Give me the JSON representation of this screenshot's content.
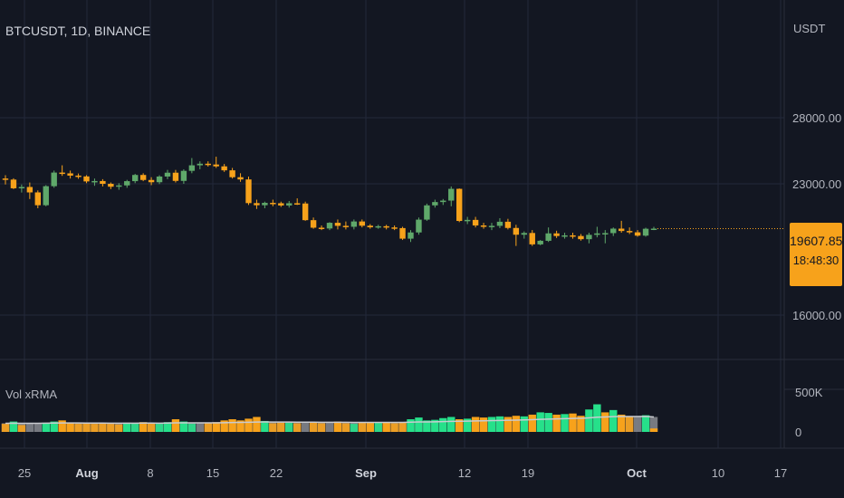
{
  "header": {
    "symbol": "BTCUSDT, 1D, BINANCE",
    "currency": "USDT"
  },
  "indicator": {
    "label": "Vol xRMA"
  },
  "last_price": {
    "value": "19607.85",
    "countdown": "18:48:30"
  },
  "colors": {
    "up": "#5fa86a",
    "down": "#f7a21b",
    "vol_up": "#26e08a",
    "vol_down": "#f7a21b",
    "vol_avg": "#8a8c92",
    "rma_line": "#c9cbd0",
    "bg": "#131722",
    "grid": "#23283a"
  },
  "chart_data": [
    {
      "type": "candlestick",
      "title": "BTCUSDT, 1D, BINANCE",
      "y_unit": "USDT",
      "y_ticks": [
        "28000.00",
        "23000.00",
        "16000.00"
      ],
      "x_ticks": [
        {
          "label": "25",
          "bold": false
        },
        {
          "label": "Aug",
          "bold": true
        },
        {
          "label": "8",
          "bold": false
        },
        {
          "label": "15",
          "bold": false
        },
        {
          "label": "22",
          "bold": false
        },
        {
          "label": "Sep",
          "bold": true
        },
        {
          "label": "12",
          "bold": false
        },
        {
          "label": "19",
          "bold": false
        },
        {
          "label": "Oct",
          "bold": true
        },
        {
          "label": "10",
          "bold": false
        },
        {
          "label": "17",
          "bold": false
        }
      ],
      "candles": [
        [
          23400,
          23650,
          22950,
          23320
        ],
        [
          23320,
          23420,
          22600,
          22660
        ],
        [
          22660,
          22950,
          22340,
          22760
        ],
        [
          22760,
          23100,
          21850,
          22350
        ],
        [
          22350,
          22500,
          21150,
          21380
        ],
        [
          21380,
          22900,
          21300,
          22820
        ],
        [
          22820,
          24000,
          22700,
          23850
        ],
        [
          23850,
          24400,
          23600,
          23790
        ],
        [
          23790,
          24000,
          23400,
          23620
        ],
        [
          23620,
          23780,
          23380,
          23560
        ],
        [
          23560,
          23650,
          23050,
          23180
        ],
        [
          23180,
          23400,
          22850,
          23210
        ],
        [
          23210,
          23350,
          22800,
          23000
        ],
        [
          23000,
          23100,
          22600,
          22780
        ],
        [
          22780,
          23050,
          22550,
          22880
        ],
        [
          22880,
          23300,
          22700,
          23200
        ],
        [
          23200,
          23750,
          23050,
          23670
        ],
        [
          23670,
          23800,
          23200,
          23290
        ],
        [
          23290,
          23500,
          22900,
          23120
        ],
        [
          23120,
          23650,
          22980,
          23550
        ],
        [
          23550,
          24050,
          23350,
          23840
        ],
        [
          23840,
          24050,
          23100,
          23220
        ],
        [
          23220,
          24100,
          23000,
          23980
        ],
        [
          23980,
          24950,
          23800,
          24400
        ],
        [
          24400,
          24700,
          24100,
          24520
        ],
        [
          24520,
          24700,
          24300,
          24460
        ],
        [
          24460,
          25050,
          24200,
          24320
        ],
        [
          24320,
          24500,
          23900,
          24020
        ],
        [
          24020,
          24200,
          23400,
          23500
        ],
        [
          23500,
          23800,
          23150,
          23330
        ],
        [
          23330,
          23550,
          21400,
          21540
        ],
        [
          21540,
          21800,
          21100,
          21380
        ],
        [
          21380,
          21650,
          21150,
          21560
        ],
        [
          21560,
          21800,
          21300,
          21530
        ],
        [
          21530,
          21650,
          21250,
          21360
        ],
        [
          21360,
          21700,
          21200,
          21530
        ],
        [
          21530,
          21900,
          21400,
          21510
        ],
        [
          21510,
          21650,
          20200,
          20250
        ],
        [
          20250,
          20450,
          19600,
          19680
        ],
        [
          19680,
          19850,
          19500,
          19620
        ],
        [
          19620,
          20100,
          19500,
          20050
        ],
        [
          20050,
          20300,
          19550,
          19820
        ],
        [
          19820,
          20150,
          19550,
          19750
        ],
        [
          19750,
          20300,
          19550,
          20150
        ],
        [
          20150,
          20300,
          19700,
          19830
        ],
        [
          19830,
          19950,
          19600,
          19710
        ],
        [
          19710,
          19900,
          19600,
          19790
        ],
        [
          19790,
          19900,
          19550,
          19700
        ],
        [
          19700,
          19850,
          19500,
          19650
        ],
        [
          19650,
          19750,
          18750,
          18850
        ],
        [
          18850,
          19500,
          18600,
          19320
        ],
        [
          19320,
          20450,
          19150,
          20290
        ],
        [
          20290,
          21500,
          20200,
          21370
        ],
        [
          21370,
          21800,
          21200,
          21620
        ],
        [
          21620,
          21850,
          21400,
          21730
        ],
        [
          21730,
          22800,
          21300,
          22620
        ],
        [
          22620,
          22650,
          20100,
          20190
        ],
        [
          20190,
          20500,
          19950,
          20270
        ],
        [
          20270,
          20500,
          19700,
          19850
        ],
        [
          19850,
          20050,
          19600,
          19770
        ],
        [
          19770,
          20050,
          19500,
          19820
        ],
        [
          19820,
          20400,
          19650,
          20130
        ],
        [
          20130,
          20350,
          19550,
          19660
        ],
        [
          19660,
          19900,
          18300,
          19150
        ],
        [
          19150,
          19400,
          18850,
          19280
        ],
        [
          19280,
          19500,
          18300,
          18420
        ],
        [
          18420,
          18750,
          18350,
          18690
        ],
        [
          18690,
          19700,
          18600,
          19250
        ],
        [
          19250,
          19450,
          18900,
          19050
        ],
        [
          19050,
          19300,
          18850,
          19100
        ],
        [
          19100,
          19300,
          18850,
          19050
        ],
        [
          19050,
          19200,
          18700,
          18810
        ],
        [
          18810,
          19300,
          18500,
          19140
        ],
        [
          19140,
          19750,
          18950,
          19250
        ],
        [
          19250,
          19500,
          18500,
          19270
        ],
        [
          19270,
          19700,
          19050,
          19610
        ],
        [
          19610,
          20200,
          19300,
          19430
        ],
        [
          19430,
          19700,
          19200,
          19330
        ],
        [
          19330,
          19500,
          19000,
          19080
        ],
        [
          19080,
          19680,
          19000,
          19600
        ],
        [
          19600,
          19750,
          19500,
          19610
        ]
      ],
      "volume": {
        "title": "Vol xRMA",
        "y_ticks": [
          "500K",
          "0"
        ],
        "values": [
          140,
          180,
          120,
          150,
          150,
          160,
          180,
          200,
          160,
          140,
          150,
          140,
          150,
          140,
          130,
          160,
          150,
          170,
          150,
          140,
          170,
          220,
          180,
          140,
          160,
          150,
          170,
          200,
          220,
          200,
          230,
          260,
          190,
          150,
          160,
          160,
          150,
          170,
          160,
          150,
          170,
          180,
          150,
          140,
          160,
          170,
          160,
          170,
          150,
          160,
          220,
          250,
          200,
          210,
          240,
          260,
          220,
          230,
          260,
          250,
          260,
          270,
          260,
          280,
          270,
          300,
          340,
          330,
          300,
          310,
          320,
          280,
          390,
          480,
          340,
          380,
          300,
          260,
          270,
          290,
          60
        ],
        "up": [
          false,
          true,
          false,
          false,
          false,
          true,
          true,
          false,
          false,
          false,
          false,
          false,
          false,
          false,
          false,
          true,
          true,
          false,
          false,
          true,
          true,
          false,
          true,
          true,
          true,
          false,
          false,
          false,
          false,
          false,
          false,
          false,
          true,
          false,
          false,
          true,
          false,
          false,
          false,
          false,
          true,
          false,
          false,
          true,
          false,
          false,
          true,
          false,
          false,
          false,
          true,
          true,
          true,
          true,
          true,
          true,
          false,
          true,
          false,
          false,
          true,
          true,
          false,
          false,
          true,
          false,
          true,
          true,
          false,
          true,
          false,
          false,
          true,
          true,
          false,
          true,
          false,
          false,
          false,
          true,
          false
        ],
        "rma": [
          150,
          152,
          150,
          150,
          150,
          151,
          153,
          156,
          156,
          155,
          154,
          153,
          153,
          152,
          151,
          152,
          152,
          153,
          153,
          152,
          154,
          157,
          158,
          157,
          157,
          157,
          158,
          160,
          163,
          165,
          168,
          172,
          173,
          172,
          171,
          171,
          170,
          170,
          169,
          168,
          168,
          168,
          167,
          166,
          166,
          166,
          166,
          166,
          166,
          166,
          169,
          173,
          174,
          176,
          179,
          183,
          185,
          187,
          191,
          193,
          196,
          199,
          202,
          205,
          208,
          212,
          218,
          223,
          227,
          231,
          235,
          237,
          245,
          256,
          260,
          266,
          268,
          268,
          268,
          269,
          260
        ]
      }
    }
  ]
}
